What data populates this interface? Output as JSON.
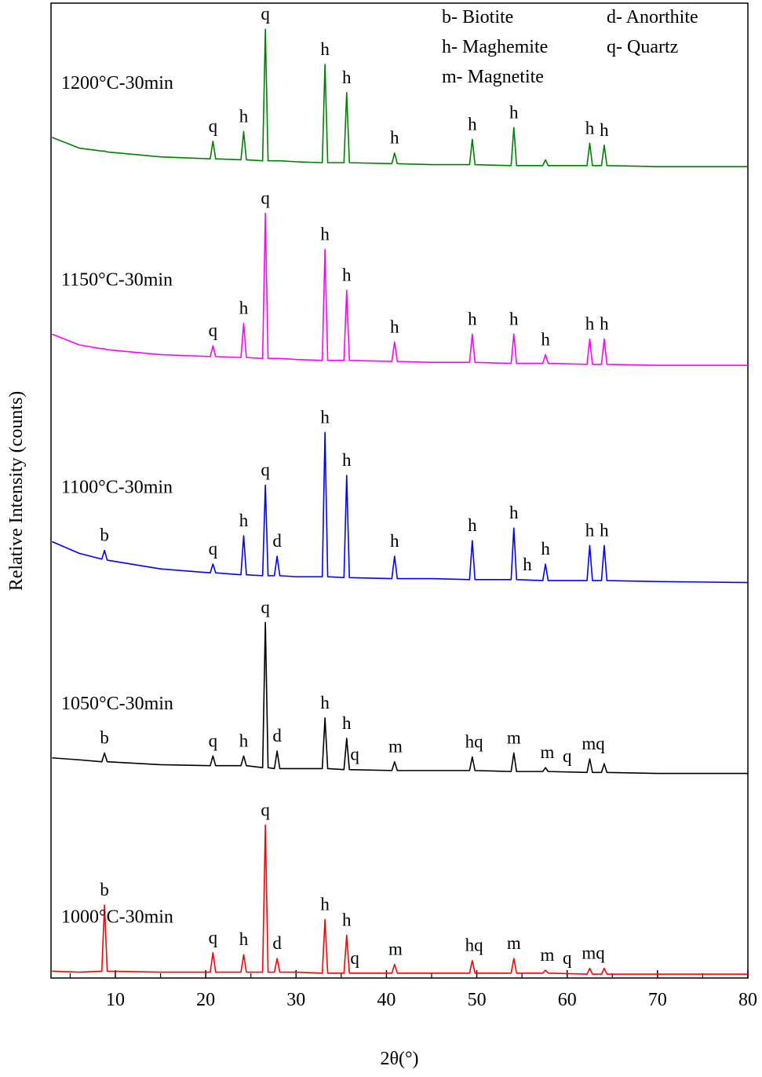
{
  "chart_data": {
    "type": "line",
    "x_label": "2θ(°)",
    "y_label": "Relative Intensity (counts)",
    "xlim": [
      3,
      80
    ],
    "xticks": [
      10,
      20,
      30,
      40,
      50,
      60,
      70,
      80
    ],
    "xminorticks": [
      5,
      15,
      25,
      35,
      45,
      55,
      65,
      75
    ],
    "ylim": [
      0,
      100
    ],
    "legend_notes": [
      "b- Biotite",
      "d- Anorthite",
      "h- Maghemite",
      "q- Quartz",
      "m- Magnetite"
    ],
    "x": [
      3,
      6,
      8.5,
      8.8,
      9.1,
      15,
      20.5,
      20.8,
      21.1,
      23.9,
      24.2,
      24.5,
      26.3,
      26.6,
      26.9,
      27.6,
      27.9,
      28.2,
      30,
      32.9,
      33.2,
      33.5,
      35.3,
      35.6,
      35.9,
      40.6,
      40.9,
      41.2,
      45,
      49.2,
      49.5,
      49.8,
      53.8,
      54.1,
      54.4,
      57.3,
      57.6,
      57.9,
      62.2,
      62.5,
      62.8,
      63.8,
      64.1,
      64.4,
      70,
      80
    ],
    "series": [
      {
        "name": "1000°C-30min",
        "color": "#ff0000",
        "values": [
          0.7,
          0.6,
          0.7,
          7.5,
          0.7,
          0.6,
          0.6,
          2.6,
          0.6,
          0.6,
          2.4,
          0.6,
          0.6,
          15.7,
          0.6,
          0.6,
          2.0,
          0.6,
          0.6,
          0.5,
          6.0,
          0.5,
          0.5,
          4.4,
          0.5,
          0.5,
          1.4,
          0.5,
          0.5,
          0.5,
          1.8,
          0.5,
          0.5,
          2.0,
          0.5,
          0.5,
          0.8,
          0.5,
          0.4,
          1.0,
          0.4,
          0.4,
          1.0,
          0.4,
          0.4,
          0.4
        ],
        "annotations": [
          {
            "text": "b",
            "x": 8.8
          },
          {
            "text": "q",
            "x": 20.8
          },
          {
            "text": "h",
            "x": 24.2
          },
          {
            "text": "q",
            "x": 26.6
          },
          {
            "text": "d",
            "x": 27.9
          },
          {
            "text": "h",
            "x": 33.2
          },
          {
            "text": "h",
            "x": 35.6
          },
          {
            "text": "q",
            "x": 36.5
          },
          {
            "text": "m",
            "x": 41
          },
          {
            "text": "hq",
            "x": 49.7
          },
          {
            "text": "m",
            "x": 54.1
          },
          {
            "text": "m",
            "x": 57.8
          },
          {
            "text": "q",
            "x": 60
          },
          {
            "text": "mq",
            "x": 62.9
          }
        ]
      },
      {
        "name": "1050°C-30min",
        "color": "#000000",
        "values": [
          22.6,
          22.4,
          22.2,
          23.1,
          22.2,
          21.9,
          21.8,
          22.8,
          21.8,
          21.8,
          22.8,
          21.8,
          21.6,
          36.5,
          21.6,
          21.5,
          23.3,
          21.5,
          21.5,
          21.5,
          26.7,
          21.5,
          21.4,
          24.6,
          21.4,
          21.3,
          22.2,
          21.3,
          21.3,
          21.3,
          22.7,
          21.3,
          21.2,
          23.1,
          21.2,
          21.2,
          21.6,
          21.2,
          21.1,
          22.5,
          21.1,
          21.1,
          22.0,
          21.1,
          21.0,
          21.0
        ],
        "annotations": [
          {
            "text": "b",
            "x": 8.8
          },
          {
            "text": "q",
            "x": 20.8
          },
          {
            "text": "h",
            "x": 24.2
          },
          {
            "text": "q",
            "x": 26.6
          },
          {
            "text": "d",
            "x": 27.9
          },
          {
            "text": "h",
            "x": 33.2
          },
          {
            "text": "h",
            "x": 35.6
          },
          {
            "text": "q",
            "x": 36.5
          },
          {
            "text": "m",
            "x": 41
          },
          {
            "text": "hq",
            "x": 49.7
          },
          {
            "text": "m",
            "x": 54.1
          },
          {
            "text": "m",
            "x": 57.8
          },
          {
            "text": "q",
            "x": 60
          },
          {
            "text": "mq",
            "x": 62.9
          }
        ]
      },
      {
        "name": "1100°C-30min",
        "color": "#0000ff",
        "values": [
          44.8,
          43.6,
          43.0,
          43.9,
          42.9,
          42.0,
          41.6,
          42.5,
          41.6,
          41.4,
          45.4,
          41.4,
          41.3,
          50.6,
          41.3,
          41.3,
          43.3,
          41.3,
          41.2,
          41.2,
          56.0,
          41.2,
          41.1,
          51.6,
          41.1,
          41.0,
          43.3,
          41.0,
          41.0,
          40.9,
          44.9,
          40.9,
          40.9,
          46.2,
          40.9,
          40.8,
          42.5,
          40.8,
          40.8,
          44.4,
          40.8,
          40.8,
          44.4,
          40.8,
          40.7,
          40.6
        ],
        "annotations": [
          {
            "text": "b",
            "x": 8.8
          },
          {
            "text": "q",
            "x": 20.8
          },
          {
            "text": "h",
            "x": 24.2
          },
          {
            "text": "q",
            "x": 26.6
          },
          {
            "text": "d",
            "x": 27.9
          },
          {
            "text": "h",
            "x": 33.2
          },
          {
            "text": "h",
            "x": 35.6
          },
          {
            "text": "h",
            "x": 40.9
          },
          {
            "text": "h",
            "x": 49.5
          },
          {
            "text": "h",
            "x": 54.1
          },
          {
            "text": "h",
            "x": 55.6
          },
          {
            "text": "h",
            "x": 57.6
          },
          {
            "text": "h",
            "x": 62.5
          },
          {
            "text": "h",
            "x": 64.1
          }
        ]
      },
      {
        "name": "1150°C-30min",
        "color": "#ff00ff",
        "values": [
          66.1,
          65.0,
          64.6,
          64.6,
          64.5,
          64.0,
          63.8,
          64.9,
          63.8,
          63.7,
          67.2,
          63.7,
          63.6,
          78.5,
          63.6,
          63.6,
          63.6,
          63.6,
          63.5,
          63.4,
          74.8,
          63.4,
          63.4,
          70.6,
          63.4,
          63.3,
          65.3,
          63.3,
          63.2,
          63.2,
          66.1,
          63.2,
          63.1,
          66.1,
          63.1,
          63.1,
          64.0,
          63.1,
          63.0,
          65.6,
          63.0,
          63.0,
          65.6,
          63.0,
          62.9,
          62.9
        ],
        "annotations": [
          {
            "text": "q",
            "x": 20.8
          },
          {
            "text": "h",
            "x": 24.2
          },
          {
            "text": "q",
            "x": 26.6
          },
          {
            "text": "h",
            "x": 33.2
          },
          {
            "text": "h",
            "x": 35.6
          },
          {
            "text": "h",
            "x": 40.9
          },
          {
            "text": "h",
            "x": 49.5
          },
          {
            "text": "h",
            "x": 54.1
          },
          {
            "text": "h",
            "x": 57.6
          },
          {
            "text": "h",
            "x": 62.5
          },
          {
            "text": "h",
            "x": 64.1
          }
        ]
      },
      {
        "name": "1200°C-30min",
        "color": "#008000",
        "values": [
          86.3,
          85.2,
          84.9,
          84.9,
          84.8,
          84.3,
          84.1,
          85.9,
          84.1,
          84.0,
          86.9,
          84.0,
          83.9,
          97.4,
          83.9,
          83.9,
          83.9,
          83.9,
          83.8,
          83.7,
          93.8,
          83.7,
          83.7,
          90.9,
          83.7,
          83.6,
          84.7,
          83.6,
          83.5,
          83.5,
          86.1,
          83.5,
          83.4,
          87.3,
          83.4,
          83.4,
          84.0,
          83.4,
          83.4,
          85.7,
          83.4,
          83.4,
          85.5,
          83.4,
          83.3,
          83.3
        ],
        "annotations": [
          {
            "text": "q",
            "x": 20.8
          },
          {
            "text": "h",
            "x": 24.2
          },
          {
            "text": "q",
            "x": 26.6
          },
          {
            "text": "h",
            "x": 33.2
          },
          {
            "text": "h",
            "x": 35.6
          },
          {
            "text": "h",
            "x": 40.9
          },
          {
            "text": "h",
            "x": 49.5
          },
          {
            "text": "h",
            "x": 54.1
          },
          {
            "text": "h",
            "x": 62.5
          },
          {
            "text": "h",
            "x": 64.1
          }
        ]
      }
    ]
  }
}
